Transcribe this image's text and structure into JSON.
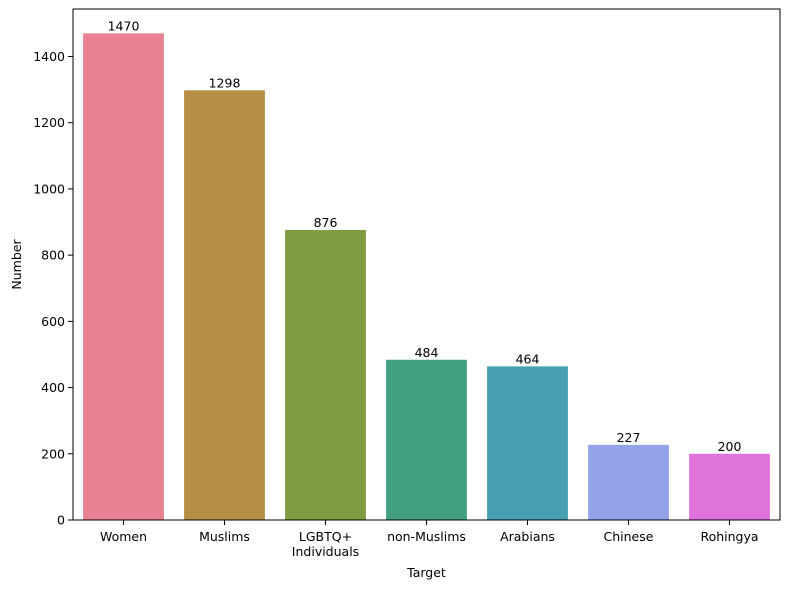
{
  "chart_data": {
    "type": "bar",
    "title": "",
    "xlabel": "Target",
    "ylabel": "Number",
    "categories": [
      [
        "Women"
      ],
      [
        "Muslims"
      ],
      [
        "LGBTQ+",
        "Individuals"
      ],
      [
        "non-Muslims"
      ],
      [
        "Arabians"
      ],
      [
        "Chinese"
      ],
      [
        "Rohingya"
      ]
    ],
    "values": [
      1470,
      1298,
      876,
      484,
      464,
      227,
      200
    ],
    "colors": [
      "#e88293",
      "#b48f45",
      "#7f9c42",
      "#43a07f",
      "#479fb2",
      "#93a3e7",
      "#e072dc"
    ],
    "yticks": [
      0,
      200,
      400,
      600,
      800,
      1000,
      1200,
      1400
    ],
    "ylim": [
      0,
      1543.5
    ],
    "grid": false,
    "data_labels": true
  }
}
